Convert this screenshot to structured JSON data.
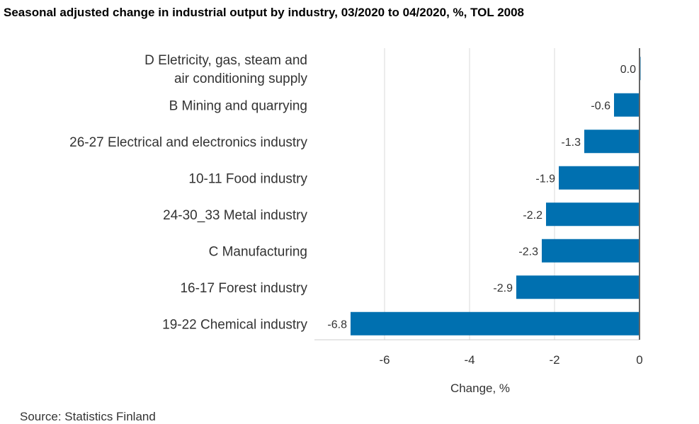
{
  "chart_data": {
    "type": "bar",
    "orientation": "horizontal",
    "title": "Seasonal adjusted change in industrial output by industry, 03/2020 to 04/2020, %, TOL 2008",
    "xlabel": "Change, %",
    "ylabel": "",
    "source": "Source: Statistics Finland",
    "categories": [
      [
        "D Eletricity, gas, steam and",
        "air conditioning supply"
      ],
      [
        "B Mining and quarrying"
      ],
      [
        "26-27 Electrical and electronics industry"
      ],
      [
        "10-11 Food industry"
      ],
      [
        "24-30_33 Metal industry"
      ],
      [
        "C Manufacturing"
      ],
      [
        "16-17 Forest industry"
      ],
      [
        "19-22 Chemical industry"
      ]
    ],
    "values": [
      0.0,
      -0.6,
      -1.3,
      -1.9,
      -2.2,
      -2.3,
      -2.9,
      -6.8
    ],
    "value_labels": [
      "0.0",
      "-0.6",
      "-1.3",
      "-1.9",
      "-2.2",
      "-2.3",
      "-2.9",
      "-6.8"
    ],
    "xlim": [
      -7.65,
      0
    ],
    "xticks": [
      -6,
      -4,
      -2,
      0
    ],
    "xtick_labels": [
      "-6",
      "-4",
      "-2",
      "0"
    ],
    "grid": "vertical",
    "legend": "none",
    "colors": {
      "bar": "#0070b0",
      "grid": "#e6e6e6",
      "axis": "#666666"
    }
  }
}
